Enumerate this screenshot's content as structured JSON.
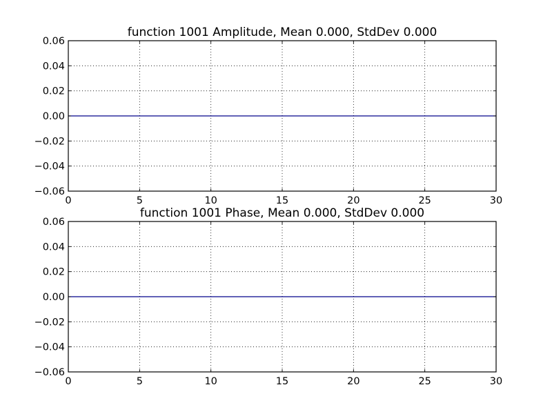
{
  "chart_data": [
    {
      "type": "line",
      "title": "function 1001 Amplitude, Mean 0.000, StdDev 0.000",
      "xlabel": "",
      "ylabel": "",
      "xlim": [
        0,
        30
      ],
      "ylim": [
        -0.06,
        0.06
      ],
      "xticks": [
        "0",
        "5",
        "10",
        "15",
        "20",
        "25",
        "30"
      ],
      "yticks": [
        "0.06",
        "0.04",
        "0.02",
        "0.00",
        "−0.02",
        "−0.04",
        "−0.06"
      ],
      "grid": true,
      "series": [
        {
          "color": "#00008b",
          "x": [
            0,
            30
          ],
          "y": [
            0.0,
            0.0
          ]
        }
      ]
    },
    {
      "type": "line",
      "title": "function 1001 Phase, Mean 0.000, StdDev 0.000",
      "xlabel": "",
      "ylabel": "",
      "xlim": [
        0,
        30
      ],
      "ylim": [
        -0.06,
        0.06
      ],
      "xticks": [
        "0",
        "5",
        "10",
        "15",
        "20",
        "25",
        "30"
      ],
      "yticks": [
        "0.06",
        "0.04",
        "0.02",
        "0.00",
        "−0.02",
        "−0.04",
        "−0.06"
      ],
      "grid": true,
      "series": [
        {
          "color": "#00008b",
          "x": [
            0,
            30
          ],
          "y": [
            0.0,
            0.0
          ]
        }
      ]
    }
  ]
}
